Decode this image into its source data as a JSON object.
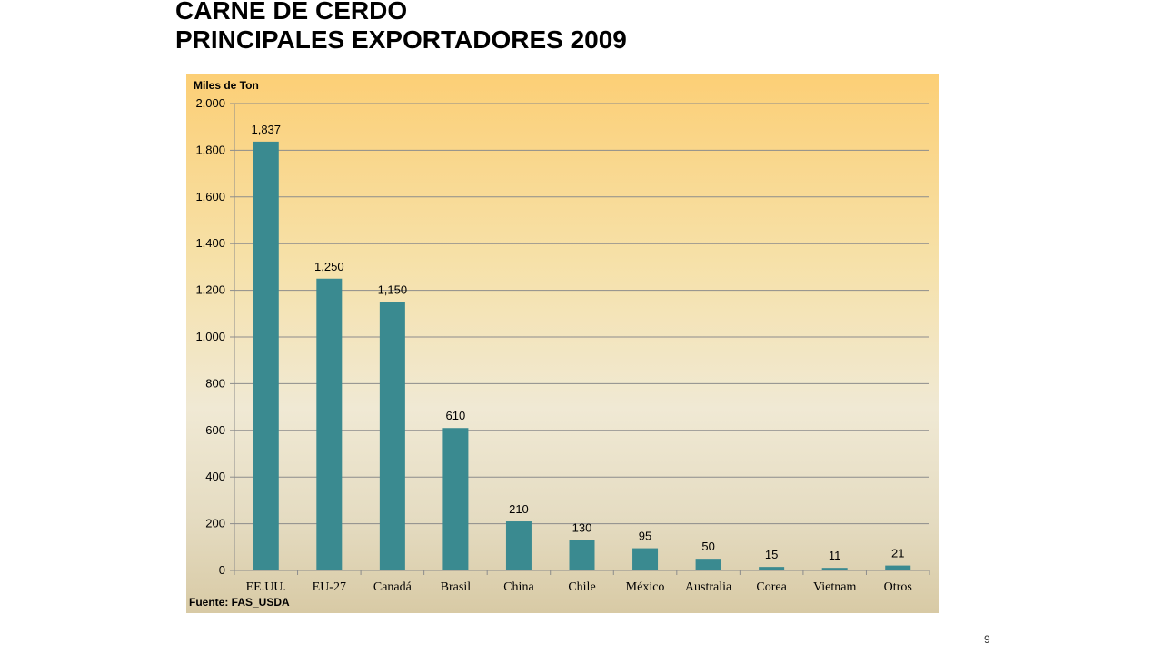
{
  "slide": {
    "title_line1": "CARNE DE CERDO",
    "title_line2": "PRINCIPALES EXPORTADORES 2009",
    "page_number": "9"
  },
  "chart_data": {
    "type": "bar",
    "ylabel": "Miles de Ton",
    "source": "Fuente: FAS_USDA",
    "categories": [
      "EE.UU.",
      "EU-27",
      "Canadá",
      "Brasil",
      "China",
      "Chile",
      "México",
      "Australia",
      "Corea",
      "Vietnam",
      "Otros"
    ],
    "values": [
      1837,
      1250,
      1150,
      610,
      210,
      130,
      95,
      50,
      15,
      11,
      21
    ],
    "data_labels": [
      "1,837",
      "1,250",
      "1,150",
      "610",
      "210",
      "130",
      "95",
      "50",
      "15",
      "11",
      "21"
    ],
    "ylim": [
      0,
      2000
    ],
    "yticks": [
      0,
      200,
      400,
      600,
      800,
      1000,
      1200,
      1400,
      1600,
      1800,
      2000
    ],
    "ytick_labels": [
      "0",
      "200",
      "400",
      "600",
      "800",
      "1,000",
      "1,200",
      "1,400",
      "1,600",
      "1,800",
      "2,000"
    ],
    "grid": true,
    "colors": {
      "bar": "#3a8a90",
      "gridline": "#8c8c8c"
    }
  }
}
